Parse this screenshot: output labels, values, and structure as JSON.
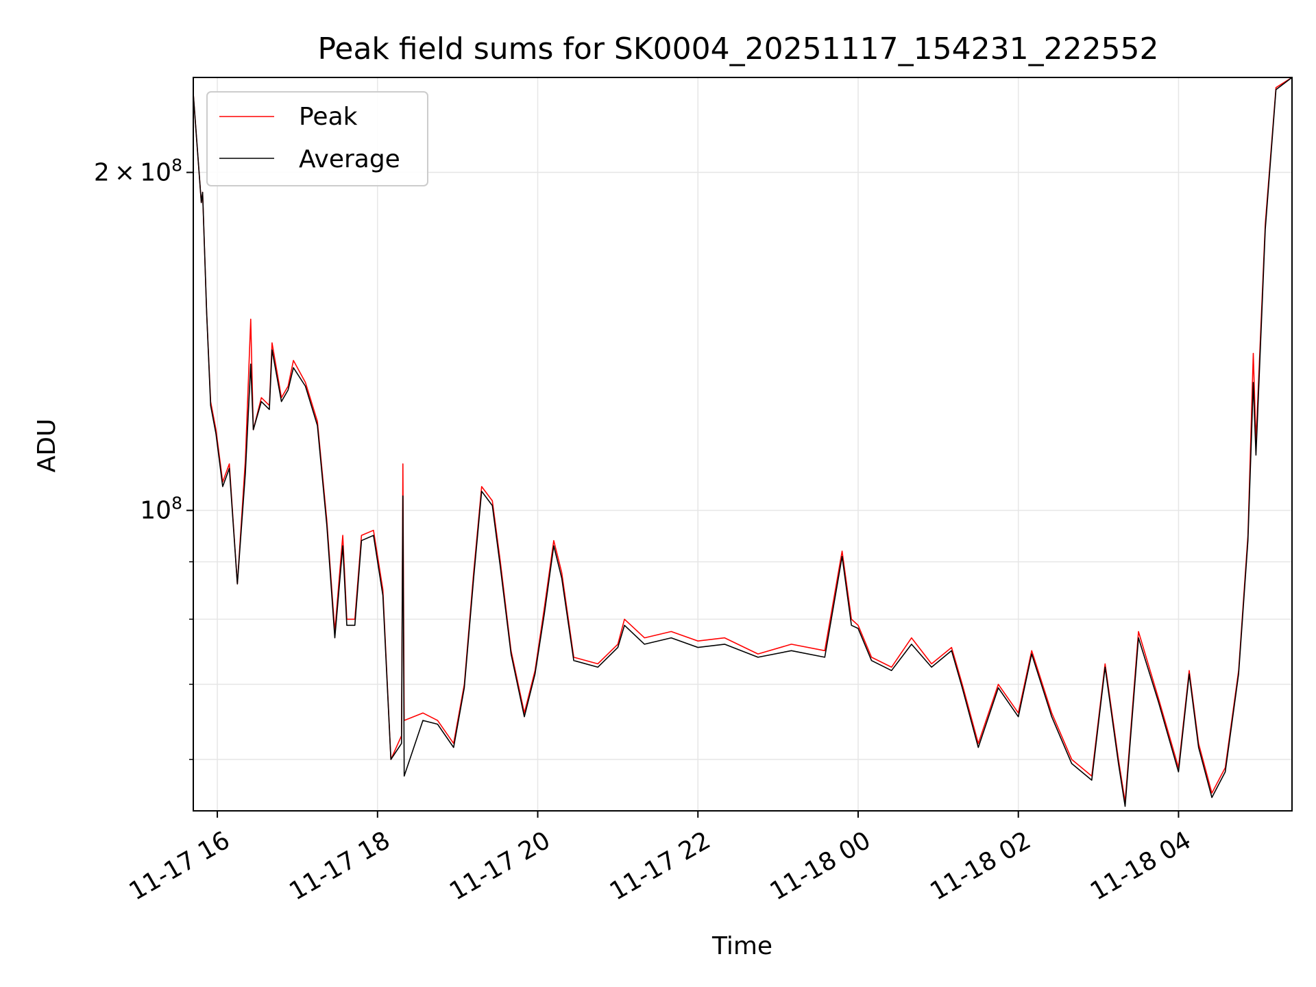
{
  "chart_data": {
    "type": "line",
    "title": "Peak field sums for SK0004_20251117_154231_222552",
    "xlabel": "Time",
    "ylabel": "ADU",
    "y_scale": "log",
    "ylim": [
      54000000,
      243000000
    ],
    "xlim": [
      "2025-11-17 15:42",
      "2025-11-18 05:25"
    ],
    "grid": true,
    "legend_position": "top-left",
    "x_ticks": [
      {
        "t": "2025-11-17 16:00",
        "label": "11-17 16"
      },
      {
        "t": "2025-11-17 18:00",
        "label": "11-17 18"
      },
      {
        "t": "2025-11-17 20:00",
        "label": "11-17 20"
      },
      {
        "t": "2025-11-17 22:00",
        "label": "11-17 22"
      },
      {
        "t": "2025-11-18 00:00",
        "label": "11-18 00"
      },
      {
        "t": "2025-11-18 02:00",
        "label": "11-18 02"
      },
      {
        "t": "2025-11-18 04:00",
        "label": "11-18 04"
      }
    ],
    "y_ticks_major": [
      {
        "v": 100000000,
        "base": "10",
        "exp": "8",
        "coef": ""
      },
      {
        "v": 200000000,
        "base": "10",
        "exp": "8",
        "coef": "2"
      }
    ],
    "y_ticks_minor": [
      60000000,
      70000000,
      80000000,
      90000000
    ],
    "series": [
      {
        "name": "Peak",
        "color": "#ff0000",
        "points": [
          [
            "2025-11-17 15:42",
            235000000
          ],
          [
            "2025-11-17 15:48",
            188000000
          ],
          [
            "2025-11-17 15:49",
            192000000
          ],
          [
            "2025-11-17 15:52",
            150000000
          ],
          [
            "2025-11-17 15:55",
            125000000
          ],
          [
            "2025-11-17 15:59",
            118000000
          ],
          [
            "2025-11-17 16:04",
            106000000
          ],
          [
            "2025-11-17 16:09",
            110000000
          ],
          [
            "2025-11-17 16:15",
            86000000
          ],
          [
            "2025-11-17 16:21",
            111000000
          ],
          [
            "2025-11-17 16:25",
            148000000
          ],
          [
            "2025-11-17 16:27",
            118000000
          ],
          [
            "2025-11-17 16:33",
            126000000
          ],
          [
            "2025-11-17 16:39",
            124000000
          ],
          [
            "2025-11-17 16:41",
            141000000
          ],
          [
            "2025-11-17 16:48",
            126000000
          ],
          [
            "2025-11-17 16:53",
            129000000
          ],
          [
            "2025-11-17 16:57",
            136000000
          ],
          [
            "2025-11-17 17:06",
            130000000
          ],
          [
            "2025-11-17 17:15",
            120000000
          ],
          [
            "2025-11-17 17:22",
            98000000
          ],
          [
            "2025-11-17 17:28",
            78000000
          ],
          [
            "2025-11-17 17:34",
            95000000
          ],
          [
            "2025-11-17 17:37",
            80000000
          ],
          [
            "2025-11-17 17:43",
            80000000
          ],
          [
            "2025-11-17 17:48",
            95000000
          ],
          [
            "2025-11-17 17:57",
            96000000
          ],
          [
            "2025-11-17 18:04",
            85000000
          ],
          [
            "2025-11-17 18:10",
            60000000
          ],
          [
            "2025-11-17 18:18",
            63000000
          ],
          [
            "2025-11-17 18:19",
            110000000
          ],
          [
            "2025-11-17 18:20",
            65000000
          ],
          [
            "2025-11-17 18:34",
            66000000
          ],
          [
            "2025-11-17 18:45",
            65000000
          ],
          [
            "2025-11-17 18:57",
            62000000
          ],
          [
            "2025-11-17 19:05",
            70000000
          ],
          [
            "2025-11-17 19:12",
            88000000
          ],
          [
            "2025-11-17 19:18",
            105000000
          ],
          [
            "2025-11-17 19:26",
            102000000
          ],
          [
            "2025-11-17 19:32",
            90000000
          ],
          [
            "2025-11-17 19:40",
            75000000
          ],
          [
            "2025-11-17 19:50",
            66000000
          ],
          [
            "2025-11-17 19:58",
            72000000
          ],
          [
            "2025-11-17 20:05",
            82000000
          ],
          [
            "2025-11-17 20:12",
            94000000
          ],
          [
            "2025-11-17 20:18",
            88000000
          ],
          [
            "2025-11-17 20:27",
            74000000
          ],
          [
            "2025-11-17 20:45",
            73000000
          ],
          [
            "2025-11-17 21:00",
            76000000
          ],
          [
            "2025-11-17 21:05",
            80000000
          ],
          [
            "2025-11-17 21:20",
            77000000
          ],
          [
            "2025-11-17 21:40",
            78000000
          ],
          [
            "2025-11-17 22:00",
            76500000
          ],
          [
            "2025-11-17 22:20",
            77000000
          ],
          [
            "2025-11-17 22:45",
            74500000
          ],
          [
            "2025-11-17 23:10",
            76000000
          ],
          [
            "2025-11-17 23:35",
            75000000
          ],
          [
            "2025-11-17 23:48",
            92000000
          ],
          [
            "2025-11-17 23:55",
            80000000
          ],
          [
            "2025-11-18 00:00",
            79000000
          ],
          [
            "2025-11-18 00:10",
            74000000
          ],
          [
            "2025-11-18 00:25",
            72500000
          ],
          [
            "2025-11-18 00:40",
            77000000
          ],
          [
            "2025-11-18 00:55",
            73000000
          ],
          [
            "2025-11-18 01:10",
            75500000
          ],
          [
            "2025-11-18 01:18",
            70000000
          ],
          [
            "2025-11-18 01:30",
            62000000
          ],
          [
            "2025-11-18 01:45",
            70000000
          ],
          [
            "2025-11-18 02:00",
            66000000
          ],
          [
            "2025-11-18 02:10",
            75000000
          ],
          [
            "2025-11-18 02:25",
            66000000
          ],
          [
            "2025-11-18 02:40",
            60000000
          ],
          [
            "2025-11-18 02:55",
            58000000
          ],
          [
            "2025-11-18 03:05",
            73000000
          ],
          [
            "2025-11-18 03:15",
            60000000
          ],
          [
            "2025-11-18 03:20",
            55000000
          ],
          [
            "2025-11-18 03:30",
            78000000
          ],
          [
            "2025-11-18 03:45",
            68000000
          ],
          [
            "2025-11-18 04:00",
            59000000
          ],
          [
            "2025-11-18 04:08",
            72000000
          ],
          [
            "2025-11-18 04:15",
            62000000
          ],
          [
            "2025-11-18 04:25",
            56000000
          ],
          [
            "2025-11-18 04:35",
            59000000
          ],
          [
            "2025-11-18 04:45",
            72000000
          ],
          [
            "2025-11-18 04:52",
            95000000
          ],
          [
            "2025-11-18 04:56",
            138000000
          ],
          [
            "2025-11-18 04:58",
            115000000
          ],
          [
            "2025-11-18 05:05",
            180000000
          ],
          [
            "2025-11-18 05:13",
            238000000
          ],
          [
            "2025-11-18 05:25",
            243000000
          ]
        ]
      },
      {
        "name": "Average",
        "color": "#000000",
        "points": [
          [
            "2025-11-17 15:42",
            235000000
          ],
          [
            "2025-11-17 15:48",
            188000000
          ],
          [
            "2025-11-17 15:49",
            192000000
          ],
          [
            "2025-11-17 15:52",
            150000000
          ],
          [
            "2025-11-17 15:55",
            124000000
          ],
          [
            "2025-11-17 15:59",
            117000000
          ],
          [
            "2025-11-17 16:04",
            105000000
          ],
          [
            "2025-11-17 16:09",
            109000000
          ],
          [
            "2025-11-17 16:15",
            86000000
          ],
          [
            "2025-11-17 16:21",
            108000000
          ],
          [
            "2025-11-17 16:25",
            135000000
          ],
          [
            "2025-11-17 16:27",
            118000000
          ],
          [
            "2025-11-17 16:33",
            125000000
          ],
          [
            "2025-11-17 16:39",
            123000000
          ],
          [
            "2025-11-17 16:41",
            139000000
          ],
          [
            "2025-11-17 16:48",
            125000000
          ],
          [
            "2025-11-17 16:53",
            128000000
          ],
          [
            "2025-11-17 16:57",
            134000000
          ],
          [
            "2025-11-17 17:06",
            129000000
          ],
          [
            "2025-11-17 17:15",
            119000000
          ],
          [
            "2025-11-17 17:22",
            97000000
          ],
          [
            "2025-11-17 17:28",
            77000000
          ],
          [
            "2025-11-17 17:34",
            93000000
          ],
          [
            "2025-11-17 17:37",
            79000000
          ],
          [
            "2025-11-17 17:43",
            79000000
          ],
          [
            "2025-11-17 17:48",
            94000000
          ],
          [
            "2025-11-17 17:57",
            95000000
          ],
          [
            "2025-11-17 18:04",
            84000000
          ],
          [
            "2025-11-17 18:10",
            60000000
          ],
          [
            "2025-11-17 18:18",
            62000000
          ],
          [
            "2025-11-17 18:19",
            103000000
          ],
          [
            "2025-11-17 18:20",
            58000000
          ],
          [
            "2025-11-17 18:34",
            65000000
          ],
          [
            "2025-11-17 18:45",
            64500000
          ],
          [
            "2025-11-17 18:57",
            61500000
          ],
          [
            "2025-11-17 19:05",
            69500000
          ],
          [
            "2025-11-17 19:12",
            87000000
          ],
          [
            "2025-11-17 19:18",
            104000000
          ],
          [
            "2025-11-17 19:26",
            101000000
          ],
          [
            "2025-11-17 19:32",
            89000000
          ],
          [
            "2025-11-17 19:40",
            74500000
          ],
          [
            "2025-11-17 19:50",
            65500000
          ],
          [
            "2025-11-17 19:58",
            71500000
          ],
          [
            "2025-11-17 20:05",
            81000000
          ],
          [
            "2025-11-17 20:12",
            93000000
          ],
          [
            "2025-11-17 20:18",
            87000000
          ],
          [
            "2025-11-17 20:27",
            73500000
          ],
          [
            "2025-11-17 20:45",
            72500000
          ],
          [
            "2025-11-17 21:00",
            75500000
          ],
          [
            "2025-11-17 21:05",
            79000000
          ],
          [
            "2025-11-17 21:20",
            76000000
          ],
          [
            "2025-11-17 21:40",
            77000000
          ],
          [
            "2025-11-17 22:00",
            75500000
          ],
          [
            "2025-11-17 22:20",
            76000000
          ],
          [
            "2025-11-17 22:45",
            74000000
          ],
          [
            "2025-11-17 23:10",
            75000000
          ],
          [
            "2025-11-17 23:35",
            74000000
          ],
          [
            "2025-11-17 23:48",
            91000000
          ],
          [
            "2025-11-17 23:55",
            79000000
          ],
          [
            "2025-11-18 00:00",
            78500000
          ],
          [
            "2025-11-18 00:10",
            73500000
          ],
          [
            "2025-11-18 00:25",
            72000000
          ],
          [
            "2025-11-18 00:40",
            76000000
          ],
          [
            "2025-11-18 00:55",
            72500000
          ],
          [
            "2025-11-18 01:10",
            75000000
          ],
          [
            "2025-11-18 01:18",
            69500000
          ],
          [
            "2025-11-18 01:30",
            61500000
          ],
          [
            "2025-11-18 01:45",
            69500000
          ],
          [
            "2025-11-18 02:00",
            65500000
          ],
          [
            "2025-11-18 02:10",
            74500000
          ],
          [
            "2025-11-18 02:25",
            65500000
          ],
          [
            "2025-11-18 02:40",
            59500000
          ],
          [
            "2025-11-18 02:55",
            57500000
          ],
          [
            "2025-11-18 03:05",
            72500000
          ],
          [
            "2025-11-18 03:15",
            59500000
          ],
          [
            "2025-11-18 03:20",
            54500000
          ],
          [
            "2025-11-18 03:30",
            77000000
          ],
          [
            "2025-11-18 03:45",
            67500000
          ],
          [
            "2025-11-18 04:00",
            58500000
          ],
          [
            "2025-11-18 04:08",
            71500000
          ],
          [
            "2025-11-18 04:15",
            61500000
          ],
          [
            "2025-11-18 04:25",
            55500000
          ],
          [
            "2025-11-18 04:35",
            58500000
          ],
          [
            "2025-11-18 04:45",
            71500000
          ],
          [
            "2025-11-18 04:52",
            94000000
          ],
          [
            "2025-11-18 04:56",
            130000000
          ],
          [
            "2025-11-18 04:58",
            112000000
          ],
          [
            "2025-11-18 05:05",
            178000000
          ],
          [
            "2025-11-18 05:13",
            237000000
          ],
          [
            "2025-11-18 05:25",
            243000000
          ]
        ]
      }
    ]
  }
}
